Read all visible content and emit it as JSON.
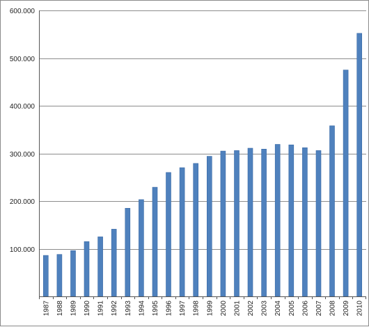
{
  "chart_data": {
    "type": "bar",
    "title": "",
    "xlabel": "",
    "ylabel": "",
    "categories": [
      "1987",
      "1988",
      "1989",
      "1990",
      "1991",
      "1992",
      "1993",
      "1994",
      "1995",
      "1996",
      "1997",
      "1998",
      "1999",
      "2000",
      "2001",
      "2002",
      "2003",
      "2004",
      "2005",
      "2006",
      "2007",
      "2008",
      "2009",
      "2010"
    ],
    "values": [
      86000,
      88000,
      96000,
      115000,
      125000,
      141000,
      185000,
      203000,
      229000,
      260000,
      270000,
      279000,
      294000,
      305000,
      306000,
      311000,
      309000,
      319000,
      318000,
      312000,
      306000,
      358000,
      475000,
      552000
    ],
    "ylim": [
      0,
      600000
    ],
    "yticks": [
      0,
      100000,
      200000,
      300000,
      400000,
      500000,
      600000
    ],
    "ytick_labels": [
      "",
      "100.000",
      "200.000",
      "300.000",
      "400.000",
      "500.000",
      "600.000"
    ],
    "grid": true,
    "legend": "none",
    "colors": {
      "bar": "#4f81bd",
      "bar_edge": "#3a6aa6",
      "grid": "#8c8c8c"
    }
  }
}
